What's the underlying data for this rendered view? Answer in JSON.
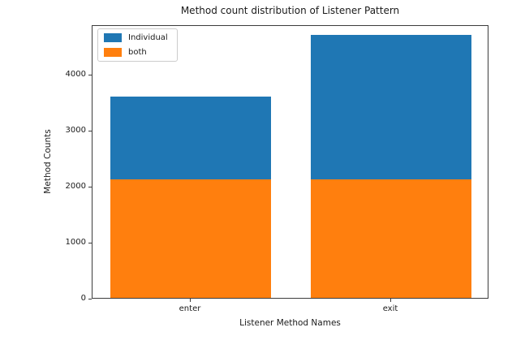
{
  "chart_data": {
    "type": "bar",
    "stacked": true,
    "title": "Method count distribution of Listener Pattern",
    "xlabel": "Listener Method Names",
    "ylabel": "Method Counts",
    "categories": [
      "enter",
      "exit"
    ],
    "series": [
      {
        "name": "both",
        "color": "#ff7f0e",
        "values": [
          2120,
          2120
        ]
      },
      {
        "name": "Individual",
        "color": "#1f77b4",
        "values": [
          1480,
          2580
        ]
      }
    ],
    "stack_totals": [
      3600,
      4700
    ],
    "legend": {
      "position": "upper left",
      "entries": [
        {
          "label": "Individual",
          "color": "#1f77b4"
        },
        {
          "label": "both",
          "color": "#ff7f0e"
        }
      ]
    },
    "yticks": [
      0,
      1000,
      2000,
      3000,
      4000
    ],
    "ylim": [
      0,
      4884
    ],
    "bar_width": 0.8,
    "x_margin": 0.05,
    "grid": false,
    "background": "#ffffff"
  }
}
